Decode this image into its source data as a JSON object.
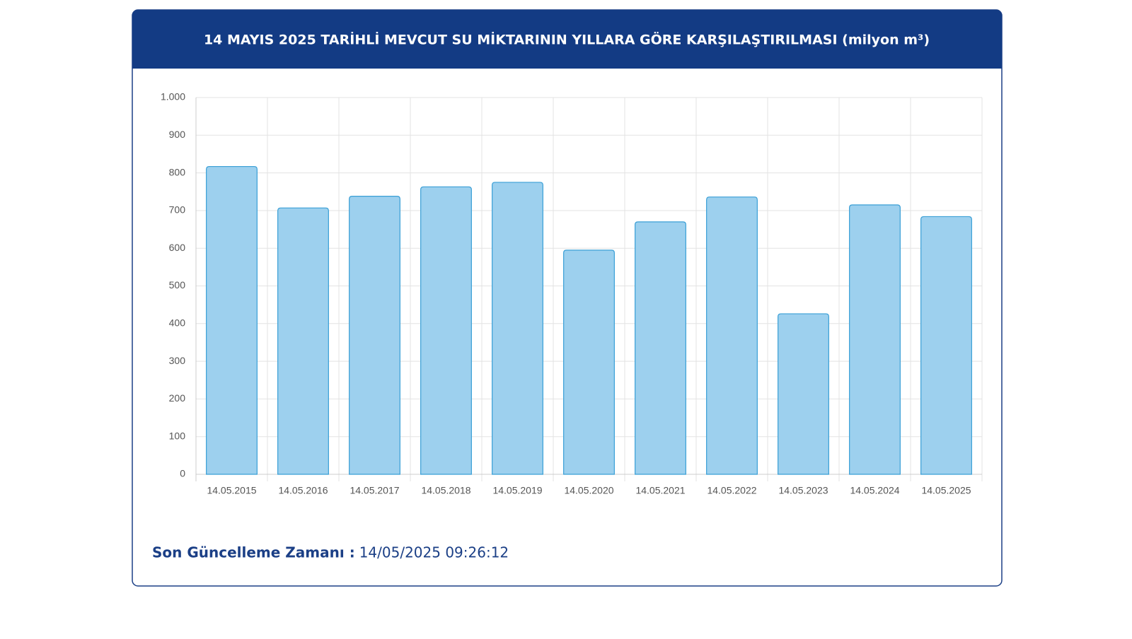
{
  "chart_data": {
    "type": "bar",
    "title": "14 MAYIS 2025 TARİHLİ MEVCUT SU MİKTARININ YILLARA GÖRE KARŞILAŞTIRILMASI (milyon m³)",
    "categories": [
      "14.05.2015",
      "14.05.2016",
      "14.05.2017",
      "14.05.2018",
      "14.05.2019",
      "14.05.2020",
      "14.05.2021",
      "14.05.2022",
      "14.05.2023",
      "14.05.2024",
      "14.05.2025"
    ],
    "values": [
      817,
      707,
      738,
      763,
      775,
      595,
      670,
      736,
      426,
      715,
      684
    ],
    "color": "#9dd0ee",
    "edge_color": "#3a9fd6",
    "ylim": [
      0,
      1000
    ],
    "yticks": [
      0,
      100,
      200,
      300,
      400,
      500,
      600,
      700,
      800,
      900,
      {
        "value": 1000,
        "label": "1.000"
      }
    ],
    "grid": true
  },
  "footer": {
    "label": "Son Güncelleme Zamanı :",
    "value": "14/05/2025 09:26:12"
  }
}
